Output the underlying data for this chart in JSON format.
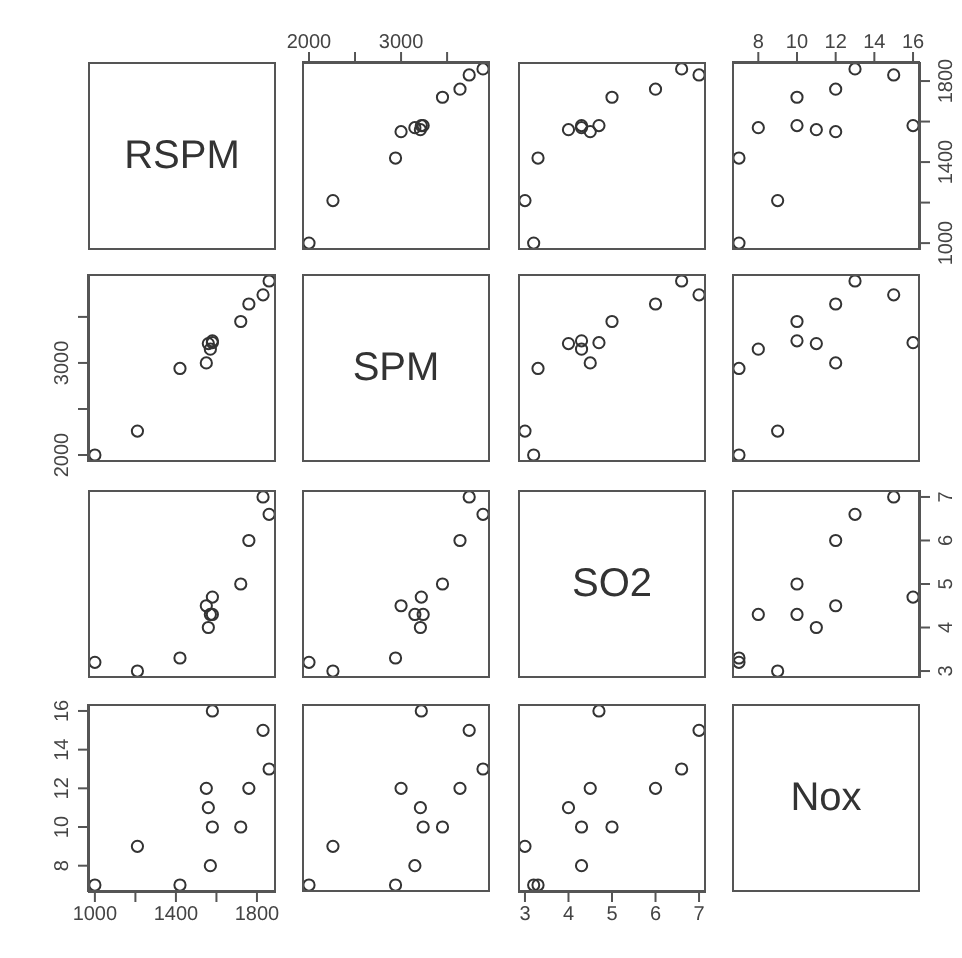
{
  "chart_data": [
    {
      "type": "other",
      "title": "RSPM"
    },
    {
      "type": "scatter",
      "x": [
        2000,
        2260,
        2940,
        3000,
        3210,
        3150,
        3240,
        3220,
        3450,
        3640,
        3740,
        3890
      ],
      "values": [
        1000,
        1210,
        1420,
        1550,
        1560,
        1570,
        1580,
        1580,
        1720,
        1760,
        1830,
        1860
      ],
      "color": "#333333",
      "marker": "circle",
      "xlim": [
        1924,
        3966
      ],
      "ylim": [
        966,
        1894
      ],
      "xticks": [
        2000,
        {
          "value": 2500,
          "label": null
        },
        3000,
        {
          "value": 3500,
          "label": null
        }
      ],
      "tick_labels": "x"
    },
    {
      "type": "scatter",
      "x": [
        3.2,
        3.0,
        3.3,
        4.5,
        4.0,
        4.3,
        4.3,
        4.7,
        5.0,
        6.0,
        7.0,
        6.6
      ],
      "values": [
        1000,
        1210,
        1420,
        1550,
        1560,
        1570,
        1580,
        1580,
        1720,
        1760,
        1830,
        1860
      ],
      "color": "#333333",
      "marker": "circle",
      "xlim": [
        2.84,
        7.16
      ],
      "ylim": [
        966,
        1894
      ],
      "tick_labels": false
    },
    {
      "type": "scatter",
      "x": [
        7,
        9,
        7,
        12,
        11,
        8,
        10,
        16,
        10,
        12,
        15,
        13
      ],
      "values": [
        1000,
        1210,
        1420,
        1550,
        1560,
        1570,
        1580,
        1580,
        1720,
        1760,
        1830,
        1860
      ],
      "color": "#333333",
      "marker": "circle",
      "xlim": [
        6.64,
        16.36
      ],
      "ylim": [
        966,
        1894
      ],
      "xticks": [
        8,
        10,
        12,
        14,
        16
      ],
      "yticks": [
        1000,
        {
          "value": 1200,
          "label": null
        },
        1400,
        {
          "value": 1600,
          "label": null
        },
        1800
      ]
    },
    {
      "type": "scatter",
      "x": [
        1000,
        1210,
        1420,
        1550,
        1560,
        1570,
        1580,
        1580,
        1720,
        1760,
        1830,
        1860
      ],
      "values": [
        2000,
        2260,
        2940,
        3000,
        3210,
        3150,
        3240,
        3220,
        3450,
        3640,
        3740,
        3890
      ],
      "color": "#333333",
      "marker": "circle",
      "xlim": [
        966,
        1894
      ],
      "ylim": [
        1924,
        3966
      ],
      "yticks": [
        2000,
        {
          "value": 2500,
          "label": null
        },
        3000,
        {
          "value": 3500,
          "label": null
        }
      ],
      "tick_labels": "y"
    },
    {
      "type": "other",
      "title": "SPM"
    },
    {
      "type": "scatter",
      "x": [
        3.2,
        3.0,
        3.3,
        4.5,
        4.0,
        4.3,
        4.3,
        4.7,
        5.0,
        6.0,
        7.0,
        6.6
      ],
      "values": [
        2000,
        2260,
        2940,
        3000,
        3210,
        3150,
        3240,
        3220,
        3450,
        3640,
        3740,
        3890
      ],
      "color": "#333333",
      "marker": "circle",
      "xlim": [
        2.84,
        7.16
      ],
      "ylim": [
        1924,
        3966
      ],
      "tick_labels": false
    },
    {
      "type": "scatter",
      "x": [
        7,
        9,
        7,
        12,
        11,
        8,
        10,
        16,
        10,
        12,
        15,
        13
      ],
      "values": [
        2000,
        2260,
        2940,
        3000,
        3210,
        3150,
        3240,
        3220,
        3450,
        3640,
        3740,
        3890
      ],
      "color": "#333333",
      "marker": "circle",
      "xlim": [
        6.64,
        16.36
      ],
      "ylim": [
        1924,
        3966
      ],
      "tick_labels": false
    },
    {
      "type": "scatter",
      "x": [
        1000,
        1210,
        1420,
        1550,
        1560,
        1570,
        1580,
        1580,
        1720,
        1760,
        1830,
        1860
      ],
      "values": [
        3.2,
        3.0,
        3.3,
        4.5,
        4.0,
        4.3,
        4.3,
        4.7,
        5.0,
        6.0,
        7.0,
        6.6
      ],
      "color": "#333333",
      "marker": "circle",
      "xlim": [
        966,
        1894
      ],
      "ylim": [
        2.84,
        7.16
      ],
      "tick_labels": false
    },
    {
      "type": "scatter",
      "x": [
        2000,
        2260,
        2940,
        3000,
        3210,
        3150,
        3240,
        3220,
        3450,
        3640,
        3740,
        3890
      ],
      "values": [
        3.2,
        3.0,
        3.3,
        4.5,
        4.0,
        4.3,
        4.3,
        4.7,
        5.0,
        6.0,
        7.0,
        6.6
      ],
      "color": "#333333",
      "marker": "circle",
      "xlim": [
        1924,
        3966
      ],
      "ylim": [
        2.84,
        7.16
      ],
      "tick_labels": false
    },
    {
      "type": "other",
      "title": "SO2"
    },
    {
      "type": "scatter",
      "x": [
        7,
        9,
        7,
        12,
        11,
        8,
        10,
        16,
        10,
        12,
        15,
        13
      ],
      "values": [
        3.2,
        3.0,
        3.3,
        4.5,
        4.0,
        4.3,
        4.3,
        4.7,
        5.0,
        6.0,
        7.0,
        6.6
      ],
      "color": "#333333",
      "marker": "circle",
      "xlim": [
        6.64,
        16.36
      ],
      "ylim": [
        2.84,
        7.16
      ],
      "yticks": [
        3,
        4,
        5,
        6,
        7
      ],
      "tick_labels": "y"
    },
    {
      "type": "scatter",
      "x": [
        1000,
        1210,
        1420,
        1550,
        1560,
        1570,
        1580,
        1580,
        1720,
        1760,
        1830,
        1860
      ],
      "values": [
        7,
        9,
        7,
        12,
        11,
        8,
        10,
        16,
        10,
        12,
        15,
        13
      ],
      "color": "#333333",
      "marker": "circle",
      "xlim": [
        966,
        1894
      ],
      "ylim": [
        6.64,
        16.36
      ],
      "xticks": [
        1000,
        {
          "value": 1200,
          "label": null
        },
        1400,
        {
          "value": 1600,
          "label": null
        },
        1800
      ],
      "yticks": [
        8,
        10,
        12,
        14,
        16
      ]
    },
    {
      "type": "scatter",
      "x": [
        2000,
        2260,
        2940,
        3000,
        3210,
        3150,
        3240,
        3220,
        3450,
        3640,
        3740,
        3890
      ],
      "values": [
        7,
        9,
        7,
        12,
        11,
        8,
        10,
        16,
        10,
        12,
        15,
        13
      ],
      "color": "#333333",
      "marker": "circle",
      "xlim": [
        1924,
        3966
      ],
      "ylim": [
        6.64,
        16.36
      ],
      "tick_labels": false
    },
    {
      "type": "scatter",
      "x": [
        3.2,
        3.0,
        3.3,
        4.5,
        4.0,
        4.3,
        4.3,
        4.7,
        5.0,
        6.0,
        7.0,
        6.6
      ],
      "values": [
        7,
        9,
        7,
        12,
        11,
        8,
        10,
        16,
        10,
        12,
        15,
        13
      ],
      "color": "#333333",
      "marker": "circle",
      "xlim": [
        2.84,
        7.16
      ],
      "ylim": [
        6.64,
        16.36
      ],
      "xticks": [
        3,
        4,
        5,
        6,
        7
      ],
      "tick_labels": "x"
    },
    {
      "type": "other",
      "title": "Nox"
    }
  ]
}
